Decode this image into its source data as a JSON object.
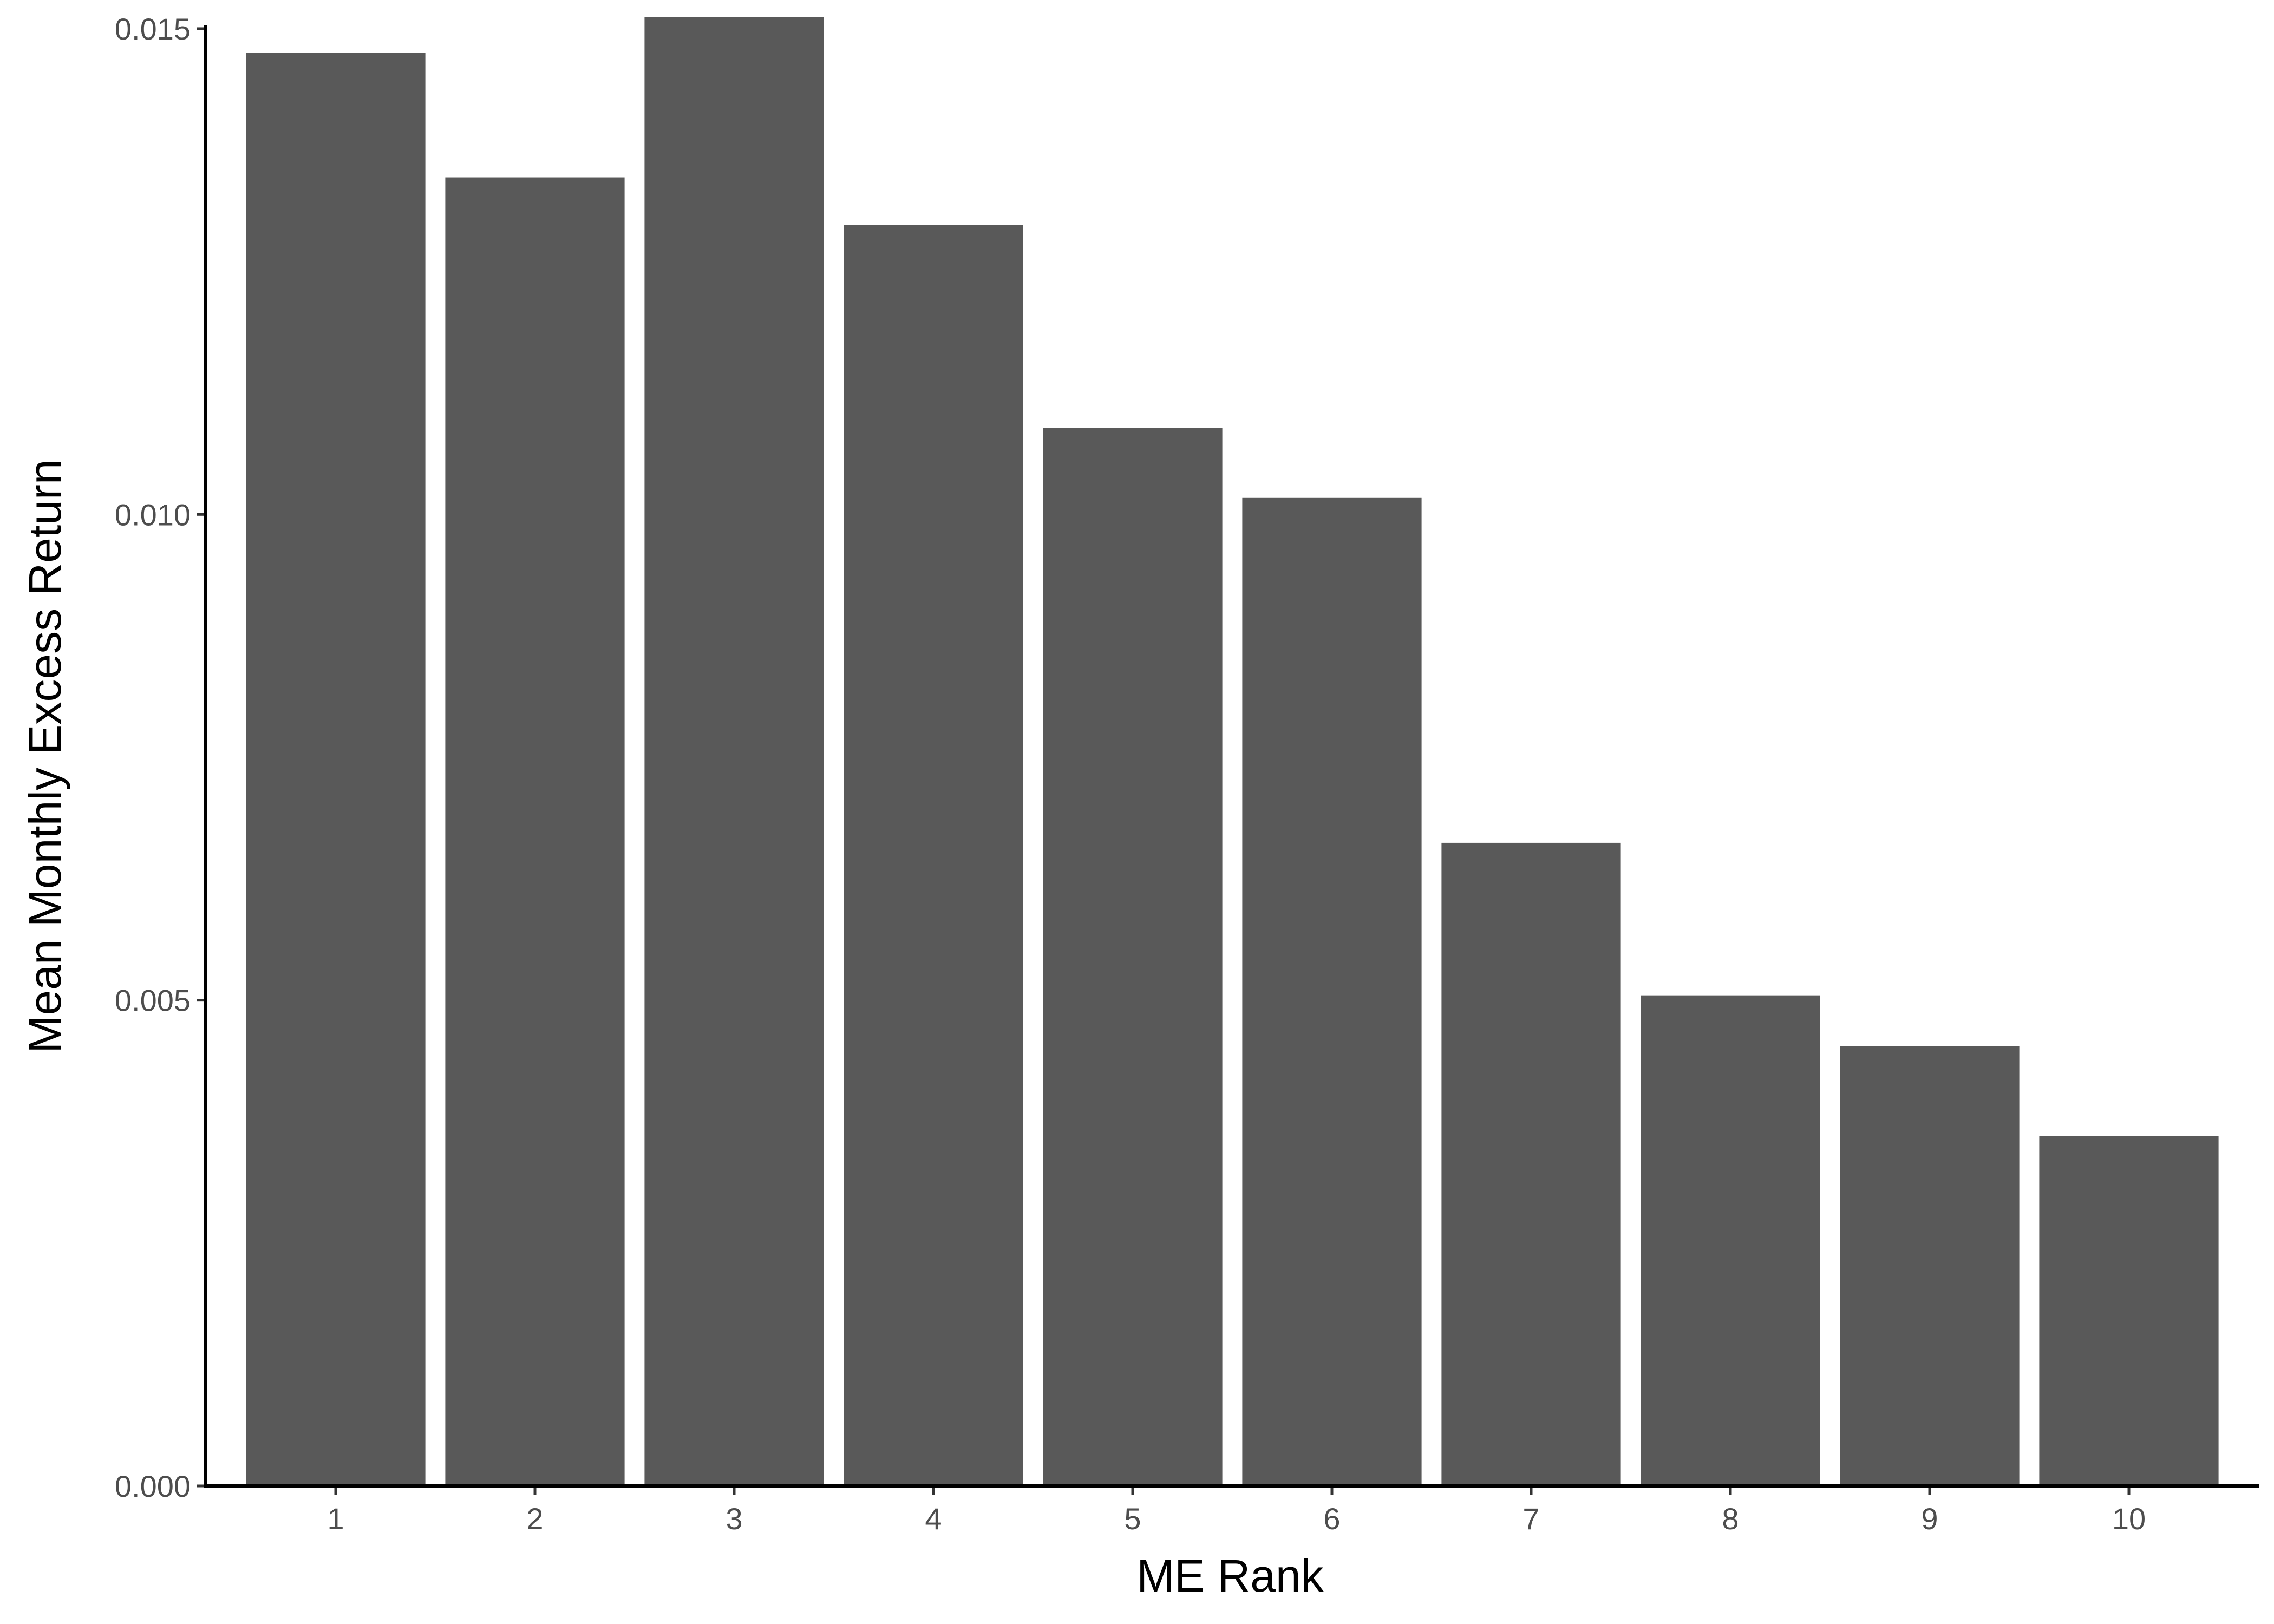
{
  "chart_data": {
    "type": "bar",
    "title": "",
    "xlabel": "ME Rank",
    "ylabel": "Mean Monthly Excess Return",
    "categories": [
      "1",
      "2",
      "3",
      "4",
      "5",
      "6",
      "7",
      "8",
      "9",
      "10"
    ],
    "values": [
      0.01475,
      0.01347,
      0.01512,
      0.01298,
      0.01089,
      0.01017,
      0.00662,
      0.00505,
      0.00453,
      0.0036
    ],
    "ylim": [
      0,
      0.0151
    ],
    "yticks": [
      "0.000",
      "0.005",
      "0.010",
      "0.015"
    ],
    "ytick_values": [
      0,
      0.005,
      0.01,
      0.015
    ],
    "grid": false,
    "bar_color": "#595959",
    "axis_color": "#000000"
  }
}
